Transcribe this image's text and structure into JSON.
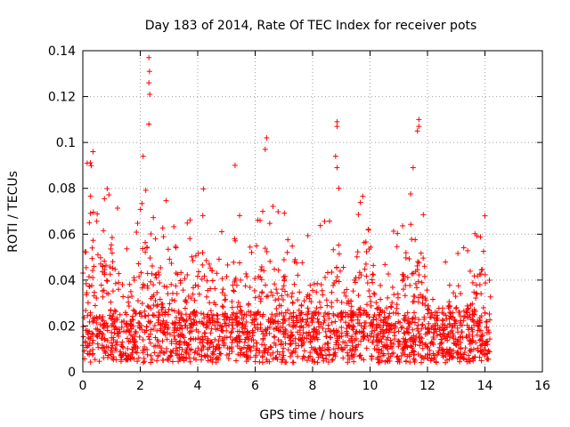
{
  "chart_data": {
    "type": "scatter",
    "title": "Day 183 of 2014, Rate Of TEC Index for receiver pots",
    "xlabel": "GPS time / hours",
    "ylabel": "ROTI / TECUs",
    "xlim": [
      0,
      16
    ],
    "ylim": [
      0,
      0.14
    ],
    "xticks": [
      "0",
      "2",
      "4",
      "6",
      "8",
      "10",
      "12",
      "14",
      "16"
    ],
    "yticks": [
      "0",
      "0.02",
      "0.04",
      "0.06",
      "0.08",
      "0.1",
      "0.12",
      "0.14"
    ],
    "grid": true,
    "marker": "+",
    "color": "#ff0000",
    "data_range_hours": [
      0,
      14.2
    ],
    "peaks": [
      {
        "x": 0.15,
        "y": 0.091
      },
      {
        "x": 2.1,
        "y": 0.094
      },
      {
        "x": 2.3,
        "y": 0.137
      },
      {
        "x": 2.32,
        "y": 0.131
      },
      {
        "x": 2.3,
        "y": 0.126
      },
      {
        "x": 2.33,
        "y": 0.121
      },
      {
        "x": 2.3,
        "y": 0.108
      },
      {
        "x": 5.3,
        "y": 0.09
      },
      {
        "x": 6.4,
        "y": 0.102
      },
      {
        "x": 6.35,
        "y": 0.097
      },
      {
        "x": 8.85,
        "y": 0.109
      },
      {
        "x": 8.85,
        "y": 0.107
      },
      {
        "x": 8.8,
        "y": 0.094
      },
      {
        "x": 8.85,
        "y": 0.089
      },
      {
        "x": 11.7,
        "y": 0.11
      },
      {
        "x": 11.7,
        "y": 0.107
      },
      {
        "x": 11.65,
        "y": 0.105
      },
      {
        "x": 11.5,
        "y": 0.089
      },
      {
        "x": 14.0,
        "y": 0.068
      }
    ]
  }
}
